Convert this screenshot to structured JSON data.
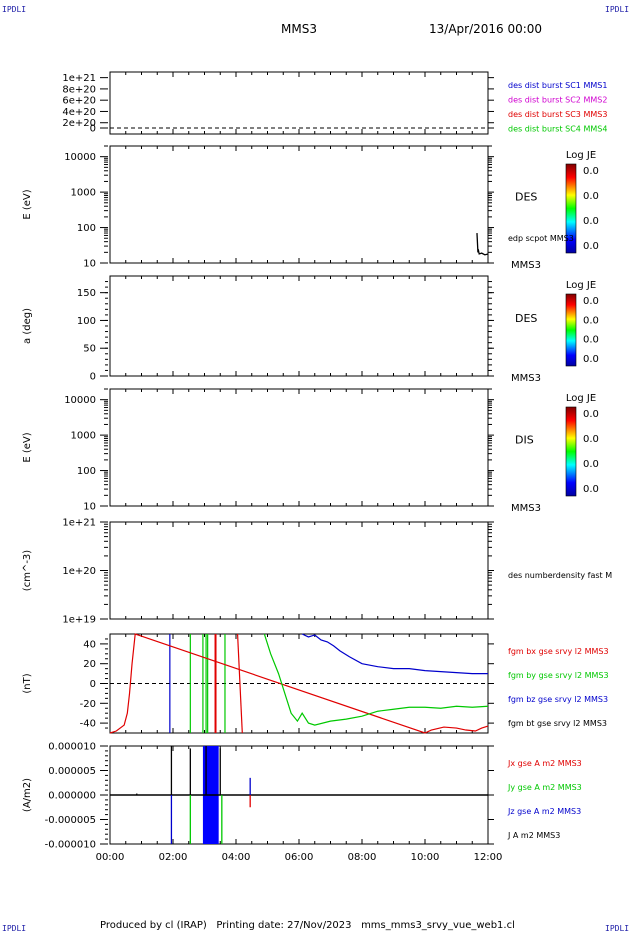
{
  "header": {
    "corner_label": "IPDLI",
    "spacecraft": "MMS3",
    "date_time": "13/Apr/2016 00:00"
  },
  "footer": {
    "produced_by": "Produced by cl (IRAP)",
    "printing_date": "Printing date: 27/Nov/2023",
    "filename": "mms_mms3_srvy_vue_web1.cl"
  },
  "colors": {
    "red": "#e00000",
    "green": "#00c800",
    "blue": "#0000cc",
    "magenta": "#d000d0",
    "black": "#000000"
  },
  "chart_data": [
    {
      "type": "line",
      "panel": "distribution",
      "yticks": [
        "1e+21",
        "8e+20",
        "6e+20",
        "4e+20",
        "2e+20",
        "0"
      ],
      "ylim": [
        0,
        1.1e+21
      ],
      "dashed_zero": true,
      "legend": [
        {
          "name": "des dist burst SC1 MMS1",
          "color": "#0000cc"
        },
        {
          "name": "des dist burst SC2 MMS2",
          "color": "#d000d0"
        },
        {
          "name": "des dist burst SC3 MMS3",
          "color": "#e00000"
        },
        {
          "name": "des dist burst SC4 MMS4",
          "color": "#00c800"
        }
      ]
    },
    {
      "type": "heatmap",
      "panel": "des-energy",
      "ylabel": "E (eV)",
      "yscale": "log",
      "ylim": [
        10,
        20000
      ],
      "yticks": [
        "10000",
        "1000",
        "100",
        "10"
      ],
      "label": "DES",
      "sublabel": "MMS3",
      "overlay_label": "edp scpot MMS3",
      "overlay_series": {
        "x_hours": [
          11.65,
          11.68,
          11.7,
          11.72,
          11.8,
          11.9,
          12.0
        ],
        "y": [
          70,
          20,
          22,
          18,
          19,
          17,
          18
        ]
      },
      "colorbar": {
        "title": "Log JE",
        "ticks": [
          "0.0",
          "0.0",
          "0.0",
          "0.0"
        ]
      }
    },
    {
      "type": "heatmap",
      "panel": "des-pitch",
      "ylabel": "a (deg)",
      "ylim": [
        0,
        180
      ],
      "yticks": [
        "150",
        "100",
        "50",
        "0"
      ],
      "label": "DES",
      "sublabel": "MMS3",
      "colorbar": {
        "title": "Log JE",
        "ticks": [
          "0.0",
          "0.0",
          "0.0",
          "0.0"
        ]
      }
    },
    {
      "type": "heatmap",
      "panel": "dis-energy",
      "ylabel": "E (eV)",
      "yscale": "log",
      "ylim": [
        10,
        20000
      ],
      "yticks": [
        "10000",
        "1000",
        "100",
        "10"
      ],
      "label": "DIS",
      "sublabel": "MMS3",
      "colorbar": {
        "title": "Log JE",
        "ticks": [
          "0.0",
          "0.0",
          "0.0",
          "0.0"
        ]
      }
    },
    {
      "type": "line",
      "panel": "density",
      "ylabel": "(cm^-3)",
      "yscale": "log",
      "yticks": [
        "1e+21",
        "1e+20",
        "1e+19"
      ],
      "legend": [
        {
          "name": "des numberdensity fast M",
          "color": "#000000"
        }
      ]
    },
    {
      "type": "line",
      "panel": "magnetic-field",
      "ylabel": "(nT)",
      "ylim": [
        -50,
        50
      ],
      "yticks": [
        "40",
        "20",
        "0",
        "-20",
        "-40"
      ],
      "dashed_zero": true,
      "legend": [
        {
          "name": "fgm bx gse srvy l2 MMS3",
          "color": "#e00000"
        },
        {
          "name": "fgm by gse srvy l2 MMS3",
          "color": "#00c800"
        },
        {
          "name": "fgm bz gse srvy l2 MMS3",
          "color": "#0000cc"
        },
        {
          "name": "fgm bt gse srvy l2 MMS3",
          "color": "#000000"
        }
      ],
      "series": [
        {
          "name": "fgm bx gse srvy l2 MMS3",
          "color": "#e00000",
          "x_hours": [
            0.0,
            0.2,
            0.45,
            0.55,
            0.62,
            0.7,
            0.8,
            10.0,
            10.2,
            10.6,
            11.0,
            11.3,
            11.6,
            11.8,
            12.0
          ],
          "y": [
            -50,
            -48,
            -42,
            -30,
            -10,
            20,
            50,
            -50,
            -47,
            -44,
            -45,
            -47,
            -48,
            -45,
            -43
          ]
        },
        {
          "name": "fgm by gse srvy l2 MMS3",
          "color": "#00c800",
          "x_hours": [
            4.9,
            5.1,
            5.35,
            5.55,
            5.75,
            5.95,
            6.1,
            6.3,
            6.5,
            7.0,
            7.5,
            8.0,
            8.5,
            9.0,
            9.5,
            10.0,
            10.5,
            11.0,
            11.5,
            12.0
          ],
          "y": [
            50,
            30,
            10,
            -10,
            -30,
            -38,
            -30,
            -40,
            -42,
            -38,
            -36,
            -33,
            -28,
            -26,
            -24,
            -24,
            -25,
            -23,
            -24,
            -23
          ]
        },
        {
          "name": "fgm bz gse srvy l2 MMS3",
          "color": "#0000cc",
          "x_hours": [
            6.1,
            6.3,
            6.5,
            6.7,
            6.9,
            7.1,
            7.3,
            7.6,
            8.0,
            8.5,
            9.0,
            9.5,
            10.0,
            10.5,
            11.0,
            11.5,
            12.0
          ],
          "y": [
            50,
            47,
            49,
            44,
            42,
            38,
            33,
            27,
            20,
            17,
            15,
            15,
            13,
            12,
            11,
            10,
            10
          ]
        }
      ],
      "spikes": [
        {
          "x_hours": 1.9,
          "color": "#0000cc"
        },
        {
          "x_hours": 2.55,
          "color": "#00c800"
        },
        {
          "x_hours": 2.95,
          "color": "#00c800"
        },
        {
          "x_hours": 3.05,
          "color": "#00c800"
        },
        {
          "x_hours": 3.1,
          "color": "#00c800"
        },
        {
          "x_hours": 3.35,
          "color": "#e00000"
        },
        {
          "x_hours": 3.65,
          "color": "#00c800"
        }
      ]
    },
    {
      "type": "line",
      "panel": "current-density",
      "ylabel": "(A/m2)",
      "ylim": [
        -1e-05,
        1e-05
      ],
      "yticks": [
        "0.000010",
        "0.000005",
        "0.000000",
        "-0.000005",
        "-0.000010"
      ],
      "xticks": [
        "00:00",
        "02:00",
        "04:00",
        "06:00",
        "08:00",
        "10:00",
        "12:00"
      ],
      "xlim_hours": [
        0,
        12
      ],
      "legend": [
        {
          "name": "Jx gse A m2 MMS3",
          "color": "#e00000"
        },
        {
          "name": "Jy gse A m2 MMS3",
          "color": "#00c800"
        },
        {
          "name": "Jz gse A m2 MMS3",
          "color": "#0000cc"
        },
        {
          "name": "J A m2 MMS3",
          "color": "#000000"
        }
      ],
      "spikes": [
        {
          "x_hours": 0.85,
          "y": 3e-07,
          "color": "#000000"
        },
        {
          "x_hours": 1.95,
          "y": 1e-05,
          "color": "#000000"
        },
        {
          "x_hours": 1.95,
          "y": -1e-05,
          "color": "#0000cc"
        },
        {
          "x_hours": 2.55,
          "y": 9.5e-06,
          "color": "#000000"
        },
        {
          "x_hours": 2.55,
          "y": -1e-05,
          "color": "#00c800"
        },
        {
          "x_hours": 3.05,
          "y": 1e-05,
          "color": "#000000"
        },
        {
          "x_hours": 3.5,
          "y": 9.5e-06,
          "color": "#000000"
        },
        {
          "x_hours": 3.55,
          "y": -1e-05,
          "color": "#00c800"
        },
        {
          "x_hours": 4.45,
          "y": 3.5e-06,
          "color": "#0000cc"
        },
        {
          "x_hours": 4.45,
          "y": -2.5e-06,
          "color": "#e00000"
        }
      ],
      "filled_band_hours": [
        2.95,
        3.45
      ]
    }
  ]
}
